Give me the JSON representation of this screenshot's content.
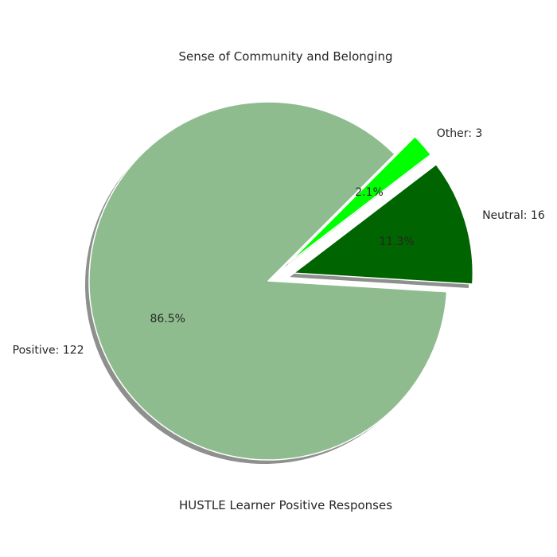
{
  "chart_data": {
    "type": "pie",
    "title": "Sense of Community and Belonging",
    "xlabel": "HUSTLE Learner Positive Responses",
    "start_angle_deg": 45,
    "direction": "counterclockwise",
    "shadow": true,
    "slices": [
      {
        "label": "Positive: 122",
        "value": 122,
        "pct": "86.5%",
        "color": "#8fbc8f",
        "explode": 0
      },
      {
        "label": "Neutral: 16",
        "value": 16,
        "pct": "11.3%",
        "color": "#006400",
        "explode": 0.15
      },
      {
        "label": "Other: 3",
        "value": 3,
        "pct": "2.1%",
        "color": "#00ff00",
        "explode": 0.15
      }
    ]
  }
}
